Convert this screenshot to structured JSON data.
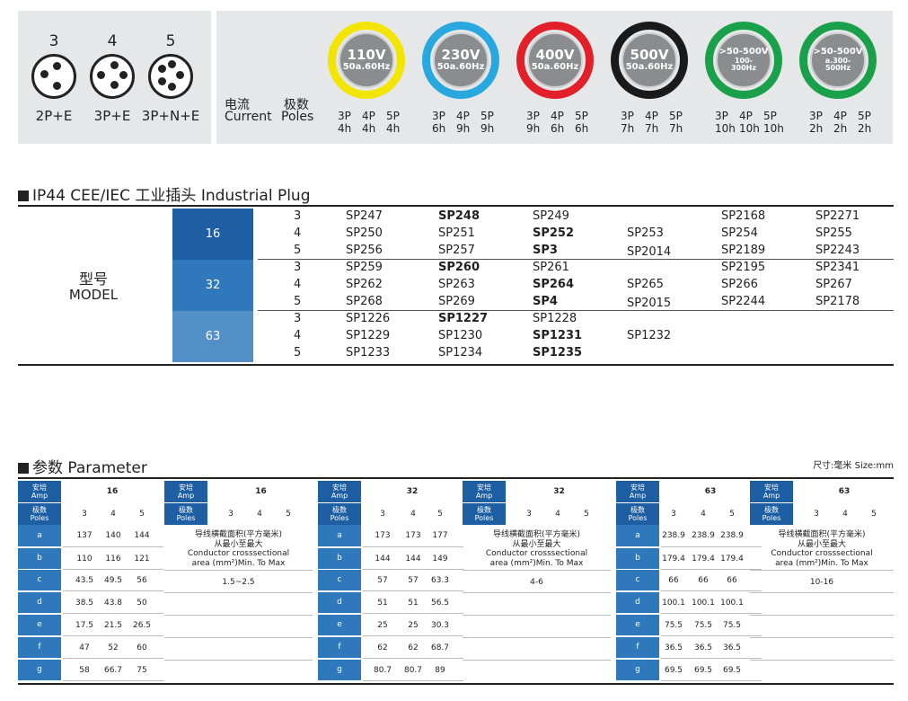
{
  "top": {
    "plugs": [
      {
        "pins": "3",
        "label": "2P+E"
      },
      {
        "pins": "4",
        "label": "3P+E"
      },
      {
        "pins": "5",
        "label": "3P+N+E"
      }
    ],
    "current_zh": "电流",
    "current_en": "Current",
    "poles_zh": "极数",
    "poles_en": "Poles",
    "voltages": [
      {
        "v": "110V",
        "hz": "50a.60Hz",
        "ring": "#f2e600",
        "poles": [
          "3P",
          "4P",
          "5P"
        ],
        "hours": [
          "4h",
          "4h",
          "4h"
        ]
      },
      {
        "v": "230V",
        "hz": "50a.60Hz",
        "ring": "#29a8e0",
        "poles": [
          "3P",
          "4P",
          "5P"
        ],
        "hours": [
          "6h",
          "9h",
          "9h"
        ]
      },
      {
        "v": "400V",
        "hz": "50a.60Hz",
        "ring": "#e2202a",
        "poles": [
          "3P",
          "4P",
          "5P"
        ],
        "hours": [
          "9h",
          "6h",
          "6h"
        ]
      },
      {
        "v": "500V",
        "hz": "50a.60Hz",
        "ring": "#1a1a1a",
        "poles": [
          "3P",
          "4P",
          "5P"
        ],
        "hours": [
          "7h",
          "7h",
          "7h"
        ]
      },
      {
        "v": ">50-500V",
        "hz": "100-",
        "hz2": "300Hz",
        "ring": "#1aa04a",
        "poles": [
          "3P",
          "4P",
          "5P"
        ],
        "hours": [
          "10h",
          "10h",
          "10h"
        ]
      },
      {
        "v": ">50-500V",
        "hz": "a.300-",
        "hz2": "500Hz",
        "ring": "#1aa04a",
        "poles": [
          "3P",
          "4P",
          "5P"
        ],
        "hours": [
          "2h",
          "2h",
          "2h"
        ]
      }
    ]
  },
  "model_section": {
    "title": "IP44 CEE/IEC 工业插头 Industrial Plug",
    "label_zh": "型号",
    "label_en": "MODEL",
    "groups": [
      {
        "amp": "16",
        "color": "#1e5fa3",
        "rows": [
          {
            "p": "3",
            "c": [
              "SP247",
              "SP248",
              "SP249",
              "",
              "SP2168",
              "SP2271"
            ],
            "bold": [
              1
            ]
          },
          {
            "p": "4",
            "c": [
              "SP250",
              "SP251",
              "SP252",
              "SP253",
              "SP254",
              "SP255"
            ],
            "bold": [
              2
            ]
          },
          {
            "p": "5",
            "c": [
              "SP256",
              "SP257",
              "SP3",
              "SP2014",
              "SP2189",
              "SP2243"
            ],
            "bold": [
              2
            ]
          }
        ]
      },
      {
        "amp": "32",
        "color": "#2f78bb",
        "rows": [
          {
            "p": "3",
            "c": [
              "SP259",
              "SP260",
              "SP261",
              "",
              "SP2195",
              "SP2341"
            ],
            "bold": [
              1
            ]
          },
          {
            "p": "4",
            "c": [
              "SP262",
              "SP263",
              "SP264",
              "SP265",
              "SP266",
              "SP267"
            ],
            "bold": [
              2
            ]
          },
          {
            "p": "5",
            "c": [
              "SP268",
              "SP269",
              "SP4",
              "SP2015",
              "SP2244",
              "SP2178"
            ],
            "bold": [
              2
            ]
          }
        ]
      },
      {
        "amp": "63",
        "color": "#5490c8",
        "rows": [
          {
            "p": "3",
            "c": [
              "SP1226",
              "SP1227",
              "SP1228",
              "",
              "",
              ""
            ],
            "bold": [
              1
            ]
          },
          {
            "p": "4",
            "c": [
              "SP1229",
              "SP1230",
              "SP1231",
              "SP1232",
              "",
              ""
            ],
            "bold": [
              2
            ]
          },
          {
            "p": "5",
            "c": [
              "SP1233",
              "SP1234",
              "SP1235",
              "",
              "",
              ""
            ],
            "bold": [
              2
            ]
          }
        ]
      }
    ]
  },
  "param_section": {
    "title": "参数 Parameter",
    "size_note": "尺寸:毫米 Size:mm",
    "amp_zh": "安培",
    "amp_en": "Amp",
    "poles_zh": "极数",
    "poles_en": "Poles",
    "poles": [
      "3",
      "4",
      "5"
    ],
    "rows": [
      "a",
      "b",
      "c",
      "d",
      "e",
      "f",
      "g"
    ],
    "conductor_zh1": "导线横截面积(平方毫米)",
    "conductor_zh2": "从最小至最大",
    "conductor_en1": "Conductor crosssectional",
    "conductor_en2": "area (mm²)Min. To Max",
    "tables": [
      {
        "amp": "16",
        "values": [
          [
            "137",
            "140",
            "144"
          ],
          [
            "110",
            "116",
            "121"
          ],
          [
            "43.5",
            "49.5",
            "56"
          ],
          [
            "38.5",
            "43.8",
            "50"
          ],
          [
            "17.5",
            "21.5",
            "26.5"
          ],
          [
            "47",
            "52",
            "60"
          ],
          [
            "58",
            "66.7",
            "75"
          ]
        ],
        "conductor": "1.5~2.5"
      },
      {
        "amp": "32",
        "values": [
          [
            "173",
            "173",
            "177"
          ],
          [
            "144",
            "144",
            "149"
          ],
          [
            "57",
            "57",
            "63.3"
          ],
          [
            "51",
            "51",
            "56.5"
          ],
          [
            "25",
            "25",
            "30.3"
          ],
          [
            "62",
            "62",
            "68.7"
          ],
          [
            "80.7",
            "80.7",
            "89"
          ]
        ],
        "conductor": "4-6"
      },
      {
        "amp": "63",
        "values": [
          [
            "238.9",
            "238.9",
            "238.9"
          ],
          [
            "179.4",
            "179.4",
            "179.4"
          ],
          [
            "66",
            "66",
            "66"
          ],
          [
            "100.1",
            "100.1",
            "100.1"
          ],
          [
            "75.5",
            "75.5",
            "75.5"
          ],
          [
            "36.5",
            "36.5",
            "36.5"
          ],
          [
            "69.5",
            "69.5",
            "69.5"
          ]
        ],
        "conductor": "10-16"
      }
    ]
  }
}
